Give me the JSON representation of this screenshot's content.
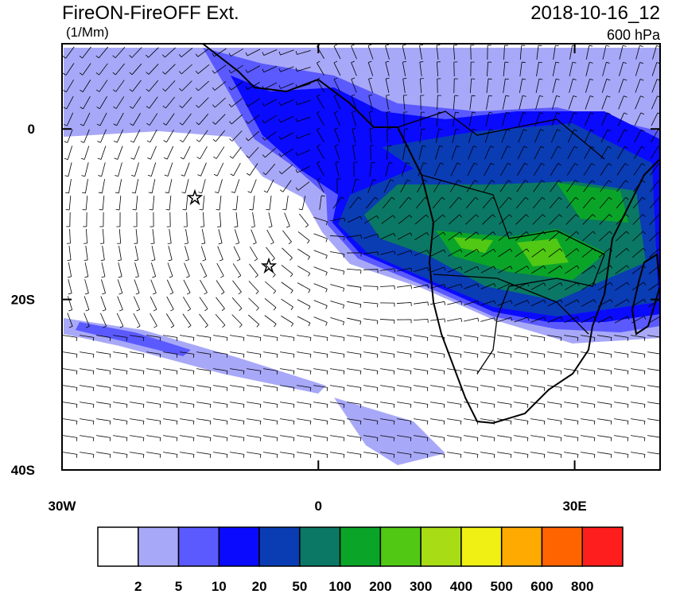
{
  "header": {
    "title": "FireON-FireOFF Ext.",
    "units": "(1/Mm)",
    "date": "2018-10-16_12",
    "level": "600 hPa"
  },
  "map": {
    "xlim": [
      -30,
      40
    ],
    "ylim": [
      -40,
      10
    ],
    "xticks": [
      {
        "value": -30,
        "label": "30W"
      },
      0,
      {
        "value": 30,
        "label": "30E"
      }
    ],
    "yticks": [
      0,
      {
        "value": -20,
        "label": "20S"
      },
      {
        "value": -40,
        "label": "40S"
      }
    ]
  },
  "colorbar": {
    "levels": [
      2,
      5,
      10,
      20,
      50,
      100,
      200,
      300,
      400,
      500,
      600,
      800
    ],
    "colors": [
      "#ffffff",
      "#a8a8f8",
      "#5a5aff",
      "#0a0aff",
      "#0a3cb4",
      "#0a7864",
      "#0aa528",
      "#50c814",
      "#a8dc14",
      "#f0f014",
      "#ffaa00",
      "#ff6400",
      "#ff1e1e"
    ]
  }
}
